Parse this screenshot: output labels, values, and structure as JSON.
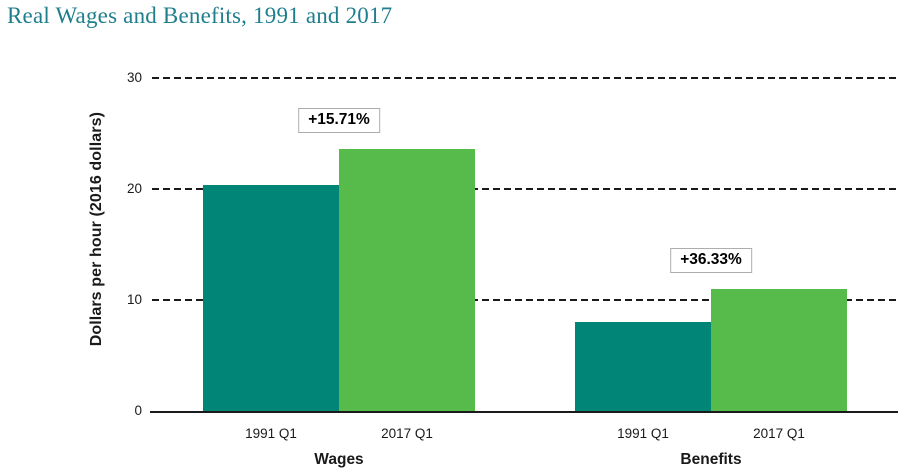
{
  "colors": {
    "title_text": "#1F7E8C",
    "axis_text": "#1A1A1A",
    "annotation_border": "#ADADAD",
    "bar_1991": "#008577",
    "bar_2017": "#56BB4B"
  },
  "chart_data": {
    "type": "bar",
    "title": "Real Wages and Benefits, 1991 and 2017",
    "xlabel": "",
    "ylabel": "Dollars per hour (2016 dollars)",
    "ylim": [
      0,
      30
    ],
    "yticks": [
      0,
      10,
      20,
      30
    ],
    "grid": "horizontal-dashed",
    "legend": "none",
    "series_labels": [
      "1991 Q1",
      "2017 Q1"
    ],
    "series_colors": [
      "#008577",
      "#56BB4B"
    ],
    "groups": [
      {
        "label": "Wages",
        "annotation": "+15.71%",
        "values": [
          20.4,
          23.6
        ]
      },
      {
        "label": "Benefits",
        "annotation": "+36.33%",
        "values": [
          8.05,
          10.97
        ]
      }
    ]
  }
}
